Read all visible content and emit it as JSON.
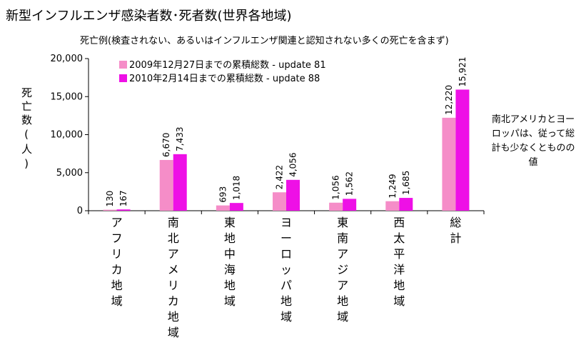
{
  "colors": {
    "series_2009": "#f58dc8",
    "series_2010": "#ee10e6",
    "axis": "#000000"
  },
  "chart_data": {
    "type": "bar",
    "title": "新型インフルエンザ感染者数･死者数(世界各地域)",
    "subtitle": "死亡例(検査されない、あるいはインフルエンザ関連と認知されない多くの死亡を含まず)",
    "ylabel": "死亡数(人)",
    "xlabel": "",
    "ylim": [
      0,
      20000
    ],
    "yticks": [
      0,
      5000,
      10000,
      15000,
      20000
    ],
    "ytick_labels": [
      "0",
      "5,000",
      "10,000",
      "15,000",
      "20,000"
    ],
    "categories": [
      "アフリカ地域",
      "南北アメリカ地域",
      "東地中海地域",
      "ヨーロッパ地域",
      "東南アジア地域",
      "西太平洋地域",
      "総計"
    ],
    "series": [
      {
        "name": "2009年12月27日までの累積総数 - update 81",
        "color": "#f58dc8",
        "values": [
          130,
          6670,
          693,
          2422,
          1056,
          1249,
          12220
        ],
        "labels": [
          "130",
          "6,670",
          "693",
          "2,422",
          "1,056",
          "1,249",
          "12,220"
        ]
      },
      {
        "name": "2010年2月14日までの累積総数 - update 88",
        "color": "#ee10e6",
        "values": [
          167,
          7433,
          1018,
          4056,
          1562,
          1685,
          15921
        ],
        "labels": [
          "167",
          "7,433",
          "1,018",
          "4,056",
          "1,562",
          "1,685",
          "15,921"
        ]
      }
    ],
    "legend_position": "top-left",
    "grid": false,
    "annotation": "南北アメリカとヨーロッパは、従って総計も少なくとものの値"
  }
}
